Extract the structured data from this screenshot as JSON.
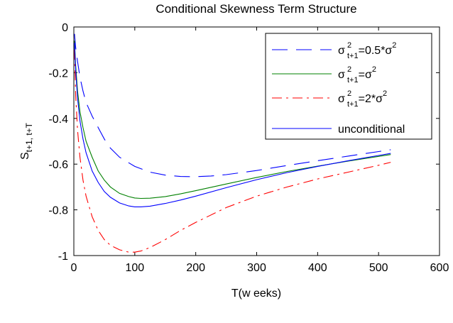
{
  "chart_data": {
    "type": "line",
    "title": "Conditional Skewness Term Structure",
    "xlabel": "T(w eeks)",
    "ylabel": {
      "base": "S",
      "sub": "t+1, t+T"
    },
    "xlim": [
      0,
      600
    ],
    "ylim": [
      -1,
      0
    ],
    "xticks": [
      0,
      100,
      200,
      300,
      400,
      500,
      600
    ],
    "yticks": [
      0,
      -0.2,
      -0.4,
      -0.6,
      -0.8,
      -1
    ],
    "xtick_labels": [
      "0",
      "100",
      "200",
      "300",
      "400",
      "500",
      "600"
    ],
    "ytick_labels": [
      "0",
      "-0.2",
      "-0.4",
      "-0.6",
      "-0.8",
      "-1"
    ],
    "grid": false,
    "legend_position": "top-right",
    "series": [
      {
        "name": "σ²t+1=0.5*σ²",
        "legend_parts": {
          "sigma": "σ",
          "sup": "2",
          "sub": "t+1",
          "rest": "=0.5*σ",
          "rest_sup": "2"
        },
        "color": "#0000ff",
        "style": "long-dash",
        "x": [
          1,
          3,
          6,
          10,
          15,
          20,
          30,
          40,
          50,
          60,
          75,
          100,
          125,
          150,
          175,
          200,
          225,
          250,
          300,
          350,
          400,
          450,
          500,
          520
        ],
        "y": [
          -0.03,
          -0.09,
          -0.15,
          -0.22,
          -0.28,
          -0.33,
          -0.39,
          -0.44,
          -0.49,
          -0.53,
          -0.57,
          -0.61,
          -0.635,
          -0.648,
          -0.654,
          -0.655,
          -0.652,
          -0.646,
          -0.628,
          -0.606,
          -0.585,
          -0.565,
          -0.545,
          -0.537
        ]
      },
      {
        "name": "σ²t+1=σ²",
        "legend_parts": {
          "sigma": "σ",
          "sup": "2",
          "sub": "t+1",
          "rest": "=σ",
          "rest_sup": "2"
        },
        "color": "#008000",
        "style": "solid",
        "x": [
          1,
          3,
          6,
          10,
          15,
          20,
          30,
          40,
          50,
          60,
          75,
          90,
          100,
          110,
          125,
          150,
          175,
          200,
          250,
          300,
          350,
          400,
          450,
          500,
          520
        ],
        "y": [
          -0.06,
          -0.17,
          -0.28,
          -0.37,
          -0.44,
          -0.5,
          -0.57,
          -0.63,
          -0.67,
          -0.7,
          -0.728,
          -0.742,
          -0.748,
          -0.75,
          -0.749,
          -0.742,
          -0.73,
          -0.716,
          -0.687,
          -0.658,
          -0.632,
          -0.609,
          -0.587,
          -0.566,
          -0.558
        ]
      },
      {
        "name": "σ²t+1=2*σ²",
        "legend_parts": {
          "sigma": "σ",
          "sup": "2",
          "sub": "t+1",
          "rest": "=2*σ",
          "rest_sup": "2"
        },
        "color": "#ff0000",
        "style": "dash-dot",
        "x": [
          1,
          3,
          6,
          10,
          15,
          20,
          30,
          40,
          50,
          60,
          75,
          90,
          100,
          110,
          125,
          150,
          175,
          200,
          250,
          300,
          350,
          400,
          450,
          500,
          520
        ],
        "y": [
          -0.1,
          -0.3,
          -0.45,
          -0.57,
          -0.67,
          -0.74,
          -0.83,
          -0.89,
          -0.93,
          -0.955,
          -0.975,
          -0.985,
          -0.985,
          -0.98,
          -0.965,
          -0.93,
          -0.89,
          -0.855,
          -0.79,
          -0.74,
          -0.7,
          -0.665,
          -0.635,
          -0.605,
          -0.592
        ]
      },
      {
        "name": "unconditional",
        "legend_parts": {
          "text": "unconditional"
        },
        "color": "#0000ff",
        "style": "solid",
        "x": [
          1,
          3,
          6,
          10,
          15,
          20,
          30,
          40,
          50,
          60,
          75,
          90,
          100,
          110,
          125,
          150,
          175,
          200,
          250,
          300,
          350,
          400,
          450,
          500,
          520
        ],
        "y": [
          -0.07,
          -0.19,
          -0.31,
          -0.41,
          -0.49,
          -0.55,
          -0.63,
          -0.68,
          -0.72,
          -0.745,
          -0.77,
          -0.783,
          -0.787,
          -0.787,
          -0.784,
          -0.772,
          -0.757,
          -0.74,
          -0.703,
          -0.668,
          -0.637,
          -0.61,
          -0.585,
          -0.562,
          -0.553
        ]
      }
    ]
  }
}
